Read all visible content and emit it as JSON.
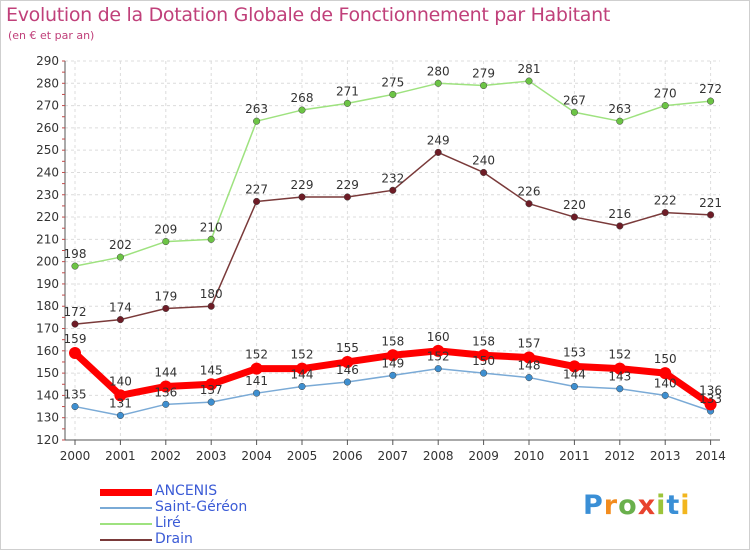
{
  "header": {
    "title": "Evolution de la Dotation Globale de Fonctionnement par Habitant",
    "subtitle": "(en € et par an)"
  },
  "brand": {
    "logo_text": "Proxiti"
  },
  "chart_data": {
    "type": "line",
    "title": "Evolution de la Dotation Globale de Fonctionnement par Habitant",
    "subtitle": "(en € et par an)",
    "xlabel": "",
    "ylabel": "",
    "ylim": [
      120,
      290
    ],
    "y_ticks": [
      120,
      130,
      140,
      150,
      160,
      170,
      180,
      190,
      200,
      210,
      220,
      230,
      240,
      250,
      260,
      270,
      280,
      290
    ],
    "grid": true,
    "legend_position": "bottom-left",
    "x": [
      "2000",
      "2001",
      "2002",
      "2003",
      "2004",
      "2005",
      "2006",
      "2007",
      "2008",
      "2009",
      "2010",
      "2011",
      "2012",
      "2013",
      "2014"
    ],
    "series": [
      {
        "name": "ANCENIS",
        "color": "#ff0000",
        "marker_color": "#ff0000",
        "values": [
          159,
          140,
          144,
          145,
          152,
          152,
          155,
          158,
          160,
          158,
          157,
          153,
          152,
          150,
          136
        ]
      },
      {
        "name": "Saint-Géréon",
        "color": "#7aaad6",
        "marker_color": "#3e8fd0",
        "values": [
          135,
          131,
          136,
          137,
          141,
          144,
          146,
          149,
          152,
          150,
          148,
          144,
          143,
          140,
          133
        ]
      },
      {
        "name": "Liré",
        "color": "#9ee27f",
        "marker_color": "#6cc445",
        "values": [
          198,
          202,
          209,
          210,
          263,
          268,
          271,
          275,
          280,
          279,
          281,
          267,
          263,
          270,
          272
        ]
      },
      {
        "name": "Drain",
        "color": "#7a3a3a",
        "marker_color": "#6e1c26",
        "values": [
          172,
          174,
          179,
          180,
          227,
          229,
          229,
          232,
          249,
          240,
          226,
          220,
          216,
          222,
          221
        ]
      }
    ]
  }
}
